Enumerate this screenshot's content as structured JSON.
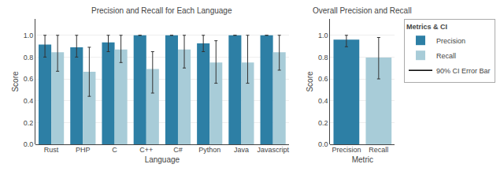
{
  "chart_data": [
    {
      "type": "bar",
      "title": "Precision and Recall for Each Language",
      "x_label": "Language",
      "y_label": "Score",
      "categories": [
        "Rust",
        "PHP",
        "C",
        "C++",
        "C#",
        "Python",
        "Java",
        "Javascript"
      ],
      "series": [
        {
          "name": "Precision",
          "color": "#2d7fa5",
          "values": [
            0.915,
            0.89,
            0.935,
            1.0,
            1.0,
            0.925,
            1.0,
            1.0
          ],
          "error_low": [
            0.115,
            0.09,
            0.085,
            0.0,
            0.0,
            0.075,
            0.0,
            0.0
          ],
          "error_high": [
            0.085,
            0.11,
            0.065,
            0.0,
            0.0,
            0.075,
            0.0,
            0.0
          ]
        },
        {
          "name": "Recall",
          "color": "#a8ccd8",
          "values": [
            0.845,
            0.665,
            0.87,
            0.69,
            0.87,
            0.75,
            0.75,
            0.845
          ],
          "error_low": [
            0.175,
            0.225,
            0.12,
            0.22,
            0.17,
            0.19,
            0.19,
            0.165
          ],
          "error_high": [
            0.155,
            0.225,
            0.13,
            0.16,
            0.13,
            0.2,
            0.25,
            0.155
          ]
        }
      ],
      "ylim": [
        0,
        1.15
      ],
      "yticks": [
        {
          "value": 0,
          "label": "0.0"
        },
        0.2,
        0.4,
        0.6,
        0.8,
        {
          "value": 1,
          "label": "1.0"
        }
      ],
      "grid": true,
      "legend": "right",
      "legend_title": "Metrics & CI",
      "error_bar_label": "90% CI Error Bar"
    },
    {
      "type": "bar",
      "title": "Overall Precision and Recall",
      "x_label": "Metric",
      "y_label": "Score",
      "categories": [
        "Precision",
        "Recall"
      ],
      "values": [
        0.96,
        0.795
      ],
      "colors": [
        "#2d7fa5",
        "#a8ccd8"
      ],
      "error_low": [
        0.065,
        0.195
      ],
      "error_high": [
        0.04,
        0.185
      ],
      "ylim": [
        0,
        1.15
      ],
      "yticks": [
        {
          "value": 0,
          "label": "0.0"
        },
        0.2,
        0.4,
        0.6,
        0.8,
        {
          "value": 1,
          "label": "1.0"
        }
      ],
      "grid": true
    }
  ]
}
